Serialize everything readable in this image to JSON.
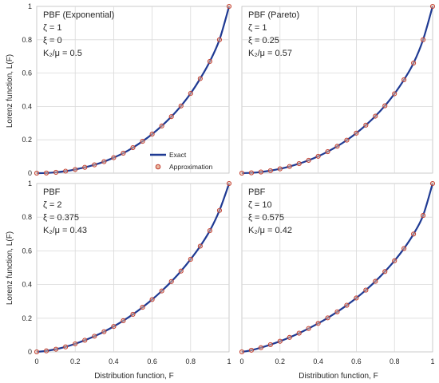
{
  "figure": {
    "xlabel": "Distribution function, F",
    "ylabel": "Lorenz function, L(F)"
  },
  "legend": {
    "exact": "Exact",
    "approximation": "Approximation"
  },
  "colors": {
    "exact_line": "#1F3A93",
    "approx_marker_stroke": "#C0392B",
    "approx_marker_fill": "#E8B8A0",
    "grid": "#D9D9D9",
    "frame": "#BFBFBF"
  },
  "chart_data": [
    {
      "type": "line",
      "panel": "top-left",
      "annotations": [
        "PBF (Exponential)",
        "ζ = 1",
        "ξ = 0",
        "K₂/μ = 0.5"
      ],
      "xlim": [
        0,
        1
      ],
      "ylim": [
        0,
        1
      ],
      "xticks": [
        "0",
        "0.2",
        "0.4",
        "0.6",
        "0.8",
        "1"
      ],
      "yticks": [
        "0",
        "0.2",
        "0.4",
        "0.6",
        "0.8",
        "1"
      ],
      "grid": true,
      "legend_position": "bottom-right",
      "x": [
        0,
        0.05,
        0.1,
        0.15,
        0.2,
        0.25,
        0.3,
        0.35,
        0.4,
        0.45,
        0.5,
        0.55,
        0.6,
        0.65,
        0.7,
        0.75,
        0.8,
        0.85,
        0.9,
        0.95,
        1
      ],
      "series": [
        {
          "name": "Exact",
          "values": [
            0,
            0.001,
            0.005,
            0.012,
            0.022,
            0.035,
            0.05,
            0.069,
            0.093,
            0.12,
            0.153,
            0.191,
            0.234,
            0.283,
            0.339,
            0.403,
            0.478,
            0.567,
            0.67,
            0.8,
            1.0
          ]
        },
        {
          "name": "Approximation",
          "values": [
            0,
            0.001,
            0.005,
            0.012,
            0.022,
            0.035,
            0.05,
            0.069,
            0.093,
            0.12,
            0.153,
            0.191,
            0.234,
            0.283,
            0.339,
            0.403,
            0.478,
            0.567,
            0.67,
            0.8,
            1.0
          ]
        }
      ]
    },
    {
      "type": "line",
      "panel": "top-right",
      "annotations": [
        "PBF (Pareto)",
        "ζ = 1",
        "ξ = 0.25",
        "K₂/μ = 0.57"
      ],
      "xlim": [
        0,
        1
      ],
      "ylim": [
        0,
        1
      ],
      "xticks": [
        "0",
        "0.2",
        "0.4",
        "0.6",
        "0.8",
        "1"
      ],
      "yticks": [
        "0",
        "0.2",
        "0.4",
        "0.6",
        "0.8",
        "1"
      ],
      "grid": true,
      "x": [
        0,
        0.05,
        0.1,
        0.15,
        0.2,
        0.25,
        0.3,
        0.35,
        0.4,
        0.45,
        0.5,
        0.55,
        0.6,
        0.65,
        0.7,
        0.75,
        0.8,
        0.85,
        0.9,
        0.95,
        1
      ],
      "series": [
        {
          "name": "Exact",
          "values": [
            0,
            0.002,
            0.007,
            0.015,
            0.026,
            0.04,
            0.057,
            0.077,
            0.101,
            0.129,
            0.161,
            0.198,
            0.24,
            0.288,
            0.342,
            0.404,
            0.476,
            0.56,
            0.66,
            0.8,
            1.0
          ]
        },
        {
          "name": "Approximation",
          "values": [
            0,
            0.002,
            0.007,
            0.015,
            0.026,
            0.04,
            0.057,
            0.077,
            0.101,
            0.129,
            0.161,
            0.198,
            0.24,
            0.288,
            0.342,
            0.404,
            0.476,
            0.56,
            0.66,
            0.8,
            1.0
          ]
        }
      ]
    },
    {
      "type": "line",
      "panel": "bottom-left",
      "annotations": [
        "PBF",
        "ζ = 2",
        "ξ = 0.375",
        "K₂/μ = 0.43"
      ],
      "xlim": [
        0,
        1
      ],
      "ylim": [
        0,
        1
      ],
      "xticks": [
        "0",
        "0.2",
        "0.4",
        "0.6",
        "0.8",
        "1"
      ],
      "yticks": [
        "0",
        "0.2",
        "0.4",
        "0.6",
        "0.8",
        "1"
      ],
      "grid": true,
      "x": [
        0,
        0.05,
        0.1,
        0.15,
        0.2,
        0.25,
        0.3,
        0.35,
        0.4,
        0.45,
        0.5,
        0.55,
        0.6,
        0.65,
        0.7,
        0.75,
        0.8,
        0.85,
        0.9,
        0.95,
        1
      ],
      "series": [
        {
          "name": "Exact",
          "values": [
            0,
            0.006,
            0.016,
            0.03,
            0.048,
            0.069,
            0.093,
            0.12,
            0.151,
            0.185,
            0.223,
            0.265,
            0.311,
            0.362,
            0.418,
            0.48,
            0.55,
            0.628,
            0.72,
            0.84,
            1.0
          ]
        },
        {
          "name": "Approximation",
          "values": [
            0,
            0.006,
            0.016,
            0.03,
            0.048,
            0.069,
            0.093,
            0.12,
            0.151,
            0.185,
            0.223,
            0.265,
            0.311,
            0.362,
            0.418,
            0.48,
            0.55,
            0.628,
            0.72,
            0.84,
            1.0
          ]
        }
      ]
    },
    {
      "type": "line",
      "panel": "bottom-right",
      "annotations": [
        "PBF",
        "ζ = 10",
        "ξ = 0.575",
        "K₂/μ = 0.42"
      ],
      "xlim": [
        0,
        1
      ],
      "ylim": [
        0,
        1
      ],
      "xticks": [
        "0",
        "0.2",
        "0.4",
        "0.6",
        "0.8",
        "1"
      ],
      "yticks": [
        "0",
        "0.2",
        "0.4",
        "0.6",
        "0.8",
        "1"
      ],
      "grid": true,
      "x": [
        0,
        0.05,
        0.1,
        0.15,
        0.2,
        0.25,
        0.3,
        0.35,
        0.4,
        0.45,
        0.5,
        0.55,
        0.6,
        0.65,
        0.7,
        0.75,
        0.8,
        0.85,
        0.9,
        0.95,
        1
      ],
      "series": [
        {
          "name": "Exact",
          "values": [
            0,
            0.01,
            0.025,
            0.043,
            0.063,
            0.086,
            0.111,
            0.139,
            0.169,
            0.202,
            0.238,
            0.277,
            0.32,
            0.367,
            0.419,
            0.477,
            0.541,
            0.614,
            0.7,
            0.81,
            1.0
          ]
        },
        {
          "name": "Approximation",
          "values": [
            0,
            0.01,
            0.025,
            0.043,
            0.063,
            0.086,
            0.111,
            0.139,
            0.169,
            0.202,
            0.238,
            0.277,
            0.32,
            0.367,
            0.419,
            0.477,
            0.541,
            0.614,
            0.7,
            0.81,
            1.0
          ]
        }
      ]
    }
  ]
}
